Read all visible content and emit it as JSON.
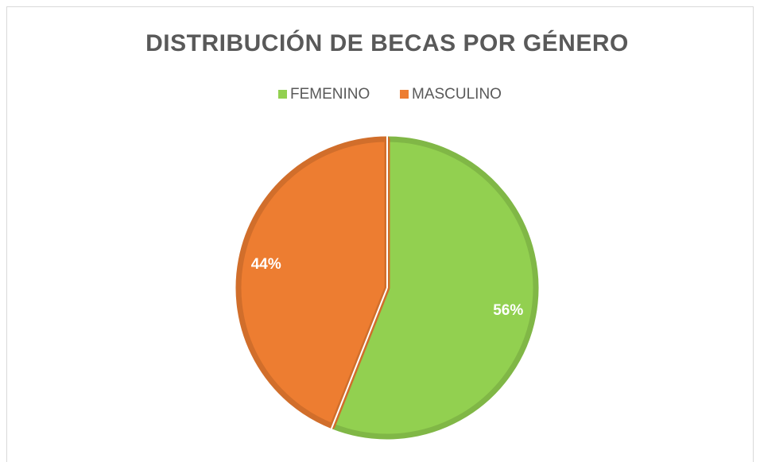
{
  "chart_data": {
    "type": "pie",
    "title": "DISTRIBUCIÓN DE BECAS POR GÉNERO",
    "categories": [
      "FEMENINO",
      "MASCULINO"
    ],
    "values": [
      56,
      44
    ],
    "value_labels": [
      "56%",
      "44%"
    ],
    "colors": [
      "#92d050",
      "#ed7d31"
    ],
    "legend": "top"
  }
}
